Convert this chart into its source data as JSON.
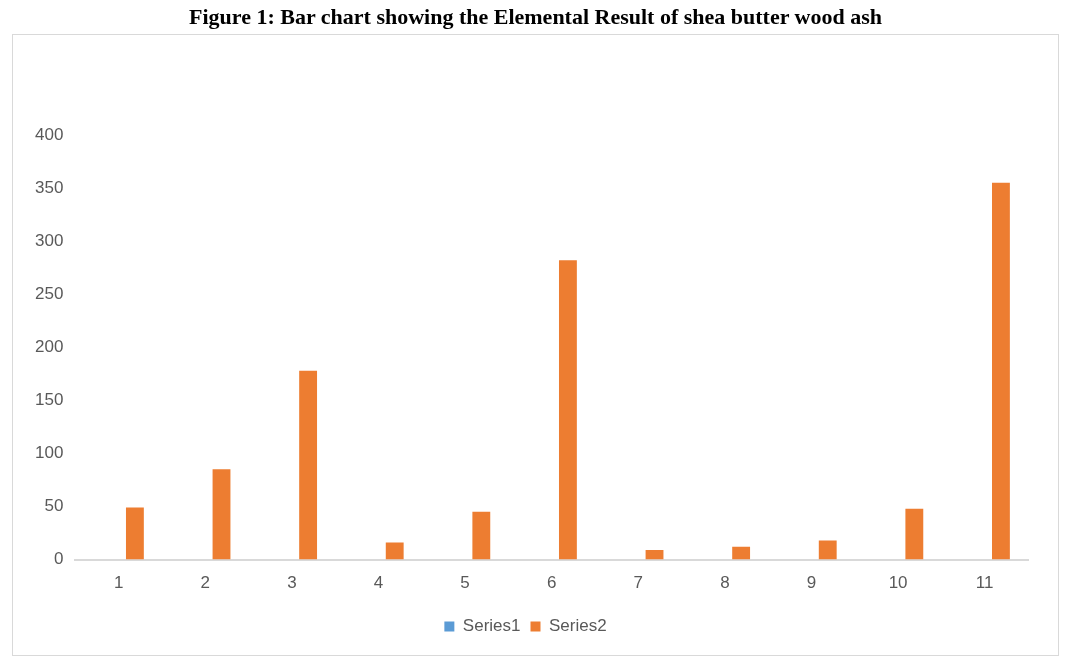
{
  "chart_data": {
    "type": "bar",
    "title": "Figure 1: Bar chart showing the Elemental Result of shea butter wood ash",
    "categories": [
      "1",
      "2",
      "3",
      "4",
      "5",
      "6",
      "7",
      "8",
      "9",
      "10",
      "11"
    ],
    "series": [
      {
        "name": "Series1",
        "color": "#5b9bd5",
        "values": [
          0,
          0,
          0,
          0,
          0,
          0,
          0,
          0,
          0,
          0,
          0
        ]
      },
      {
        "name": "Series2",
        "color": "#ed7d31",
        "values": [
          49,
          85,
          178,
          16,
          45,
          282,
          9,
          12,
          18,
          48,
          355
        ]
      }
    ],
    "ylim": [
      0,
      400
    ],
    "yticks": [
      0,
      50,
      100,
      150,
      200,
      250,
      300,
      350,
      400
    ],
    "grid": false,
    "legend": "bottom"
  }
}
